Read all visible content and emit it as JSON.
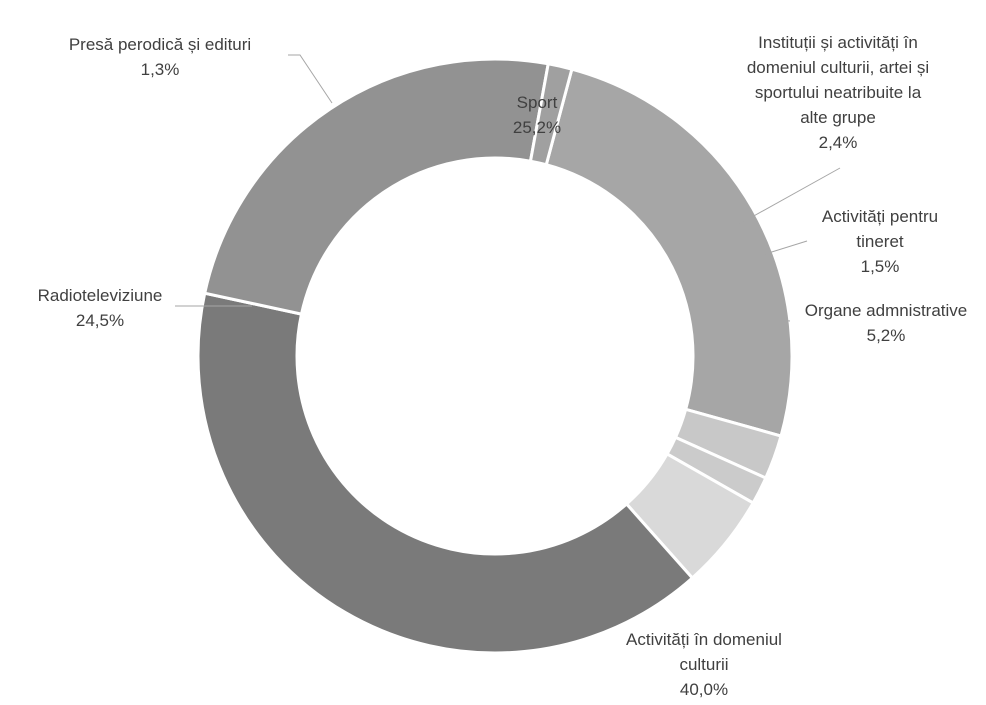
{
  "chart_data": {
    "type": "donut",
    "title": "",
    "slices": [
      {
        "label": "Sport",
        "value": 25.2,
        "value_label": "25,2%",
        "color": "#a6a6a6"
      },
      {
        "label": "Instituții și activități în domeniul culturii, artei și sportului neatribuite la alte grupe",
        "value": 2.4,
        "value_label": "2,4%",
        "color": "#c8c8c8"
      },
      {
        "label": "Activități pentru tineret",
        "value": 1.5,
        "value_label": "1,5%",
        "color": "#cbcbcb"
      },
      {
        "label": "Organe admnistrative",
        "value": 5.2,
        "value_label": "5,2%",
        "color": "#d9d9d9"
      },
      {
        "label": "Activități în domeniul culturii",
        "value": 40.0,
        "value_label": "40,0%",
        "color": "#7a7a7a"
      },
      {
        "label": "Radioteleviziune",
        "value": 24.5,
        "value_label": "24,5%",
        "color": "#929292"
      },
      {
        "label": "Presă perodică și edituri",
        "value": 1.3,
        "value_label": "1,3%",
        "color": "#a0a0a0"
      }
    ],
    "label_lines": [
      [
        "Sport"
      ],
      [
        "Instituții și activități în",
        "domeniul culturii, artei și",
        "sportului neatribuite la",
        "alte grupe"
      ],
      [
        "Activități pentru",
        "tineret"
      ],
      [
        "Organe admnistrative"
      ],
      [
        "Activități în domeniul",
        "culturii"
      ],
      [
        "Radioteleviziune"
      ],
      [
        "Presă perodică și edituri"
      ]
    ],
    "legend": "none"
  }
}
